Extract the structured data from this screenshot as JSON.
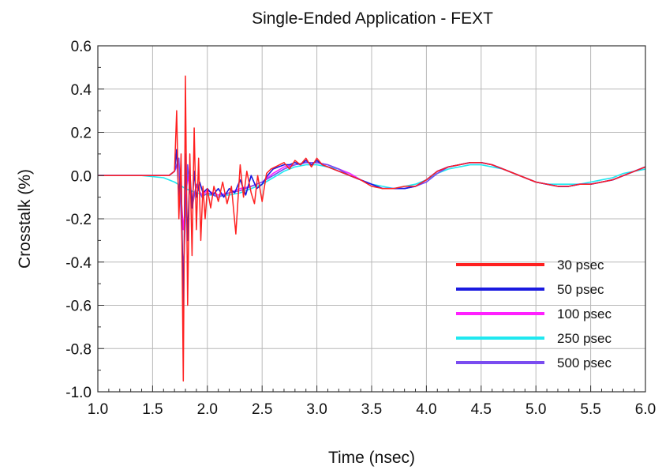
{
  "chart_data": {
    "type": "line",
    "title": "Single-Ended Application - FEXT",
    "xlabel": "Time (nsec)",
    "ylabel": "Crosstalk (%)",
    "xlim": [
      1.0,
      6.0
    ],
    "ylim": [
      -1.0,
      0.6
    ],
    "x_ticks": [
      "1.0",
      "1.5",
      "2.0",
      "2.5",
      "3.0",
      "3.5",
      "4.0",
      "4.5",
      "5.0",
      "5.5",
      "6.0"
    ],
    "y_ticks": [
      "0.6",
      "0.4",
      "0.2",
      "0.0",
      "-0.2",
      "-0.4",
      "-0.6",
      "-0.8",
      "-1.0"
    ],
    "grid": true,
    "legend_position": "bottom-right",
    "series": [
      {
        "name": "30 psec",
        "color": "#ff2020",
        "x": [
          1.0,
          1.5,
          1.65,
          1.7,
          1.72,
          1.74,
          1.76,
          1.78,
          1.8,
          1.82,
          1.84,
          1.86,
          1.88,
          1.9,
          1.92,
          1.94,
          1.96,
          1.98,
          2.0,
          2.03,
          2.06,
          2.1,
          2.14,
          2.18,
          2.22,
          2.26,
          2.3,
          2.33,
          2.36,
          2.4,
          2.43,
          2.46,
          2.5,
          2.54,
          2.58,
          2.62,
          2.66,
          2.7,
          2.75,
          2.8,
          2.85,
          2.9,
          2.95,
          3.0,
          3.05,
          3.1,
          3.2,
          3.3,
          3.4,
          3.5,
          3.6,
          3.7,
          3.8,
          3.9,
          4.0,
          4.1,
          4.2,
          4.3,
          4.4,
          4.5,
          4.6,
          4.7,
          4.8,
          4.9,
          5.0,
          5.1,
          5.2,
          5.3,
          5.4,
          5.5,
          5.6,
          5.7,
          5.8,
          5.9,
          6.0
        ],
        "values": [
          0.0,
          0.0,
          0.0,
          0.02,
          0.3,
          -0.2,
          0.1,
          -0.95,
          0.46,
          -0.6,
          0.1,
          -0.37,
          0.22,
          -0.25,
          0.08,
          -0.3,
          -0.05,
          -0.2,
          -0.06,
          -0.15,
          -0.05,
          -0.12,
          -0.03,
          -0.13,
          -0.05,
          -0.27,
          0.05,
          -0.1,
          0.02,
          -0.08,
          -0.13,
          0.0,
          -0.12,
          0.01,
          0.03,
          0.04,
          0.05,
          0.06,
          0.03,
          0.07,
          0.05,
          0.08,
          0.04,
          0.08,
          0.05,
          0.04,
          0.02,
          0.0,
          -0.02,
          -0.05,
          -0.06,
          -0.06,
          -0.05,
          -0.05,
          -0.02,
          0.02,
          0.04,
          0.05,
          0.06,
          0.06,
          0.05,
          0.03,
          0.01,
          -0.01,
          -0.03,
          -0.04,
          -0.05,
          -0.05,
          -0.04,
          -0.04,
          -0.03,
          -0.02,
          0.0,
          0.02,
          0.04
        ]
      },
      {
        "name": "50 psec",
        "color": "#1a1ae0",
        "x": [
          1.0,
          1.5,
          1.65,
          1.7,
          1.72,
          1.74,
          1.76,
          1.78,
          1.8,
          1.82,
          1.84,
          1.86,
          1.88,
          1.9,
          1.93,
          1.96,
          2.0,
          2.05,
          2.1,
          2.15,
          2.2,
          2.25,
          2.3,
          2.35,
          2.4,
          2.45,
          2.5,
          2.55,
          2.6,
          2.65,
          2.7,
          2.75,
          2.8,
          2.85,
          2.9,
          2.95,
          3.0,
          3.05,
          3.1,
          3.2,
          3.3,
          3.4,
          3.5,
          3.6,
          3.7,
          3.8,
          3.9,
          4.0,
          4.1,
          4.2,
          4.3,
          4.4,
          4.5,
          4.6,
          4.7,
          4.8,
          4.9,
          5.0,
          5.1,
          5.2,
          5.3,
          5.4,
          5.5,
          5.6,
          5.7,
          5.8,
          5.9,
          6.0
        ],
        "values": [
          0.0,
          0.0,
          0.0,
          0.02,
          0.12,
          -0.1,
          0.05,
          -0.64,
          0.1,
          -0.3,
          0.02,
          -0.15,
          0.02,
          -0.1,
          -0.03,
          -0.08,
          -0.06,
          -0.09,
          -0.06,
          -0.1,
          -0.06,
          -0.08,
          -0.02,
          -0.09,
          0.0,
          -0.06,
          -0.04,
          0.0,
          0.03,
          0.04,
          0.05,
          0.05,
          0.06,
          0.05,
          0.07,
          0.05,
          0.07,
          0.05,
          0.04,
          0.02,
          0.0,
          -0.02,
          -0.04,
          -0.06,
          -0.06,
          -0.06,
          -0.05,
          -0.02,
          0.02,
          0.04,
          0.05,
          0.06,
          0.06,
          0.05,
          0.03,
          0.01,
          -0.01,
          -0.03,
          -0.04,
          -0.05,
          -0.05,
          -0.04,
          -0.04,
          -0.03,
          -0.02,
          0.0,
          0.02,
          0.04
        ]
      },
      {
        "name": "100 psec",
        "color": "#ff20ff",
        "x": [
          1.0,
          1.5,
          1.65,
          1.7,
          1.74,
          1.78,
          1.82,
          1.86,
          1.9,
          1.95,
          2.0,
          2.1,
          2.2,
          2.3,
          2.4,
          2.5,
          2.6,
          2.7,
          2.8,
          2.9,
          3.0,
          3.1,
          3.2,
          3.3,
          3.4,
          3.5,
          3.6,
          3.7,
          3.8,
          3.9,
          4.0,
          4.1,
          4.2,
          4.3,
          4.4,
          4.5,
          4.6,
          4.7,
          4.8,
          4.9,
          5.0,
          5.1,
          5.2,
          5.3,
          5.4,
          5.5,
          5.6,
          5.7,
          5.8,
          5.9,
          6.0
        ],
        "values": [
          0.0,
          0.0,
          0.0,
          0.02,
          0.06,
          -0.25,
          0.0,
          -0.12,
          -0.05,
          -0.09,
          -0.07,
          -0.09,
          -0.08,
          -0.06,
          -0.05,
          -0.03,
          0.01,
          0.04,
          0.05,
          0.06,
          0.06,
          0.05,
          0.03,
          0.01,
          -0.02,
          -0.04,
          -0.06,
          -0.06,
          -0.06,
          -0.05,
          -0.02,
          0.02,
          0.04,
          0.05,
          0.06,
          0.06,
          0.05,
          0.03,
          0.01,
          -0.01,
          -0.03,
          -0.04,
          -0.05,
          -0.05,
          -0.04,
          -0.04,
          -0.03,
          -0.02,
          0.0,
          0.02,
          0.04
        ]
      },
      {
        "name": "250 psec",
        "color": "#20e8f0",
        "x": [
          1.0,
          1.4,
          1.6,
          1.7,
          1.8,
          1.9,
          2.0,
          2.1,
          2.2,
          2.3,
          2.4,
          2.5,
          2.6,
          2.7,
          2.8,
          2.9,
          3.0,
          3.1,
          3.2,
          3.3,
          3.4,
          3.5,
          3.6,
          3.7,
          3.8,
          3.9,
          4.0,
          4.1,
          4.2,
          4.3,
          4.4,
          4.5,
          4.6,
          4.7,
          4.8,
          4.9,
          5.0,
          5.1,
          5.2,
          5.3,
          5.4,
          5.5,
          5.6,
          5.7,
          5.8,
          5.9,
          6.0
        ],
        "values": [
          0.0,
          0.0,
          -0.01,
          -0.03,
          -0.06,
          -0.08,
          -0.09,
          -0.09,
          -0.09,
          -0.08,
          -0.06,
          -0.04,
          -0.01,
          0.02,
          0.04,
          0.05,
          0.05,
          0.04,
          0.03,
          0.01,
          -0.02,
          -0.04,
          -0.05,
          -0.06,
          -0.05,
          -0.04,
          -0.02,
          0.01,
          0.03,
          0.04,
          0.05,
          0.05,
          0.04,
          0.03,
          0.01,
          -0.01,
          -0.03,
          -0.04,
          -0.04,
          -0.04,
          -0.04,
          -0.03,
          -0.02,
          -0.01,
          0.01,
          0.02,
          0.03
        ]
      },
      {
        "name": "500 psec",
        "color": "#7a4cf0",
        "x": [
          1.0,
          1.5,
          1.65,
          1.7,
          1.74,
          1.78,
          1.82,
          1.86,
          1.9,
          1.95,
          2.0,
          2.1,
          2.2,
          2.3,
          2.4,
          2.5,
          2.6,
          2.7,
          2.8,
          2.9,
          3.0,
          3.1,
          3.2,
          3.3,
          3.4,
          3.5,
          3.6,
          3.7,
          3.8,
          3.9,
          4.0,
          4.1,
          4.2,
          4.3,
          4.4,
          4.5,
          4.6,
          4.7,
          4.8,
          4.9,
          5.0,
          5.1,
          5.2,
          5.3,
          5.4,
          5.5,
          5.6,
          5.7,
          5.8,
          5.9,
          6.0
        ],
        "values": [
          0.0,
          0.0,
          0.0,
          0.02,
          0.08,
          -0.45,
          0.05,
          -0.15,
          -0.04,
          -0.1,
          -0.08,
          -0.1,
          -0.08,
          -0.07,
          -0.05,
          -0.03,
          0.0,
          0.03,
          0.05,
          0.06,
          0.06,
          0.05,
          0.03,
          0.0,
          -0.02,
          -0.04,
          -0.06,
          -0.06,
          -0.06,
          -0.05,
          -0.03,
          0.01,
          0.04,
          0.05,
          0.06,
          0.06,
          0.05,
          0.03,
          0.01,
          -0.01,
          -0.03,
          -0.04,
          -0.05,
          -0.05,
          -0.04,
          -0.04,
          -0.03,
          -0.02,
          0.0,
          0.02,
          0.04
        ]
      }
    ]
  }
}
